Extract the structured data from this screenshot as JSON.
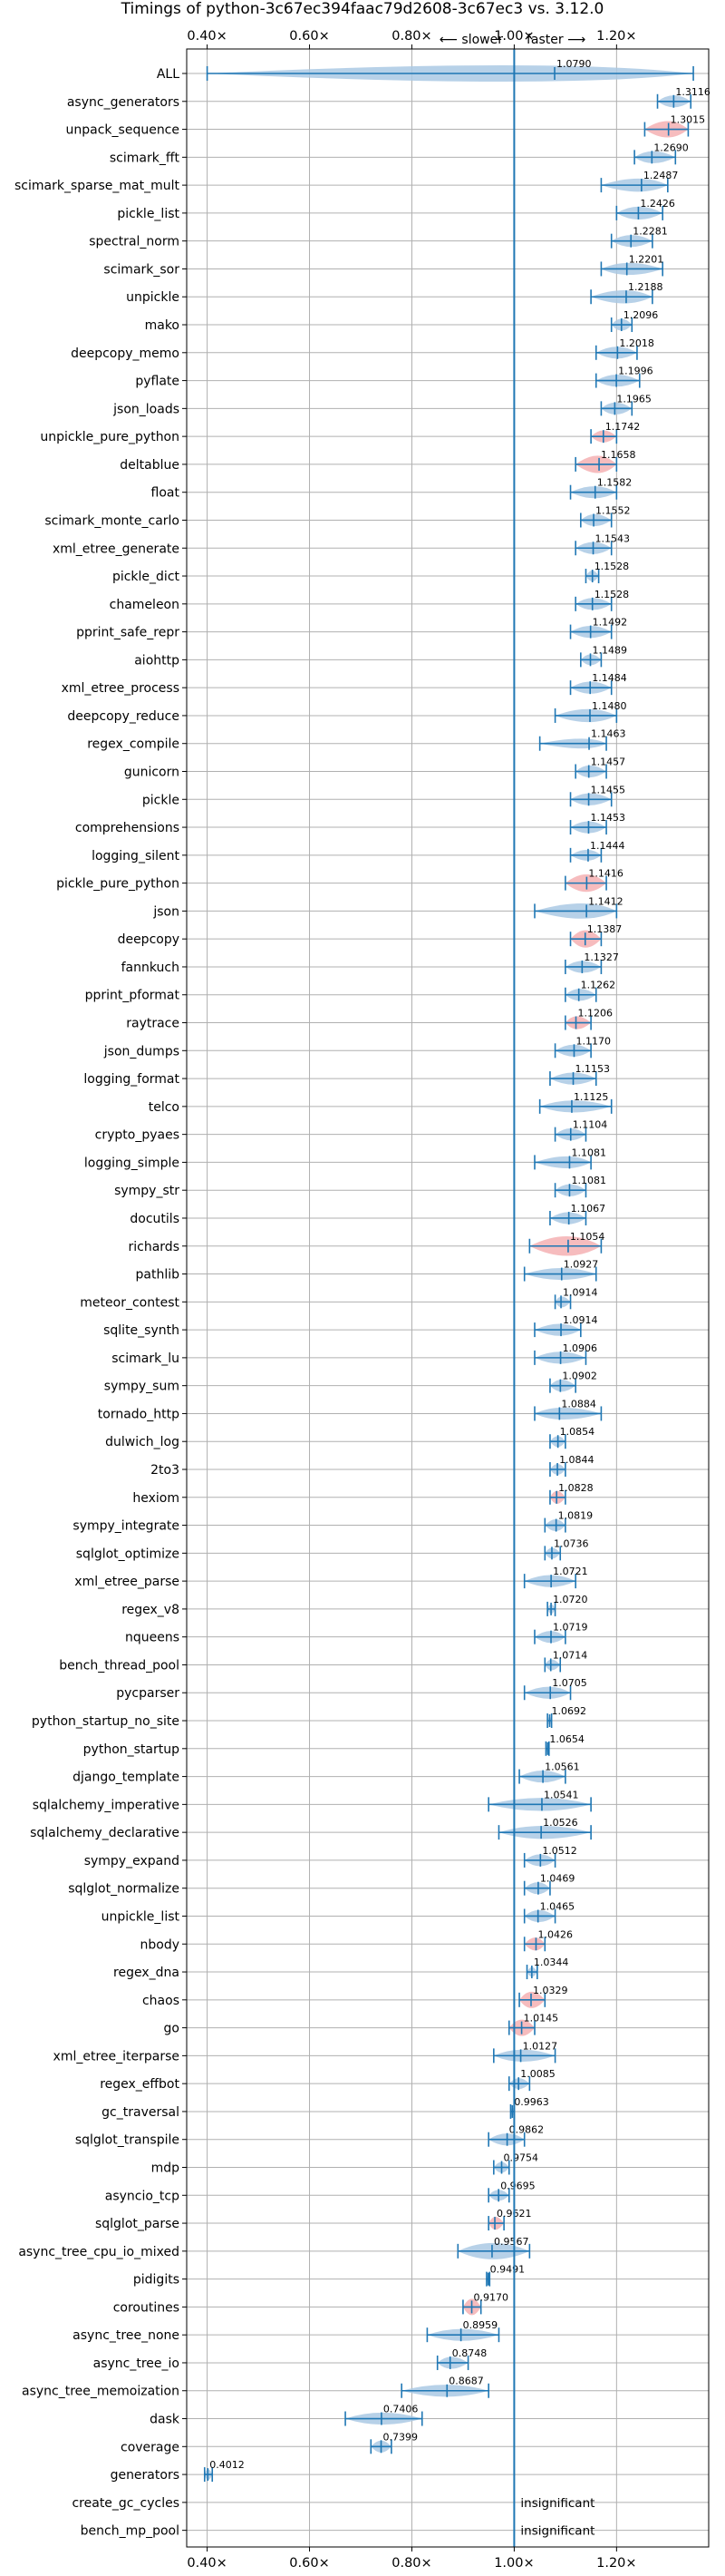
{
  "chart_data": {
    "type": "violin",
    "title": "Timings of python-3c67ec394faac79d2608-3c67ec3 vs. 3.12.0",
    "direction_left": "⟵ slower",
    "direction_right": "faster ⟶",
    "x_ticks": [
      0.4,
      0.6,
      0.8,
      1.0,
      1.2
    ],
    "x_tick_labels": [
      "0.40×",
      "0.60×",
      "0.80×",
      "1.00×",
      "1.20×"
    ],
    "xlim": [
      0.36,
      1.38
    ],
    "grid": true,
    "reference_line": 1.0,
    "colors": {
      "faster": "#aac9e4",
      "slower": "#f5b0b3",
      "accent": "#1f77b4",
      "grid": "#b0b0b0"
    },
    "insignificant_label": "insignificant",
    "benchmarks": [
      {
        "name": "ALL",
        "value": 1.079,
        "label": "1.0790",
        "lo": 0.4,
        "hi": 1.35,
        "wid": 0.75
      },
      {
        "name": "async_generators",
        "value": 1.3116,
        "label": "1.3116",
        "lo": 1.28,
        "hi": 1.345,
        "wid": 0.55
      },
      {
        "name": "unpack_sequence",
        "value": 1.3015,
        "label": "1.3015",
        "lo": 1.255,
        "hi": 1.34,
        "wid": 0.75,
        "slower": true
      },
      {
        "name": "scimark_fft",
        "value": 1.269,
        "label": "1.2690",
        "lo": 1.235,
        "hi": 1.315,
        "wid": 0.55
      },
      {
        "name": "scimark_sparse_mat_mult",
        "value": 1.2487,
        "label": "1.2487",
        "lo": 1.17,
        "hi": 1.3,
        "wid": 0.6
      },
      {
        "name": "pickle_list",
        "value": 1.2426,
        "label": "1.2426",
        "lo": 1.2,
        "hi": 1.29,
        "wid": 0.6
      },
      {
        "name": "spectral_norm",
        "value": 1.2281,
        "label": "1.2281",
        "lo": 1.19,
        "hi": 1.27,
        "wid": 0.55
      },
      {
        "name": "scimark_sor",
        "value": 1.2201,
        "label": "1.2201",
        "lo": 1.17,
        "hi": 1.29,
        "wid": 0.55
      },
      {
        "name": "unpickle",
        "value": 1.2188,
        "label": "1.2188",
        "lo": 1.15,
        "hi": 1.27,
        "wid": 0.6
      },
      {
        "name": "mako",
        "value": 1.2096,
        "label": "1.2096",
        "lo": 1.19,
        "hi": 1.23,
        "wid": 0.55
      },
      {
        "name": "deepcopy_memo",
        "value": 1.2018,
        "label": "1.2018",
        "lo": 1.16,
        "hi": 1.24,
        "wid": 0.55
      },
      {
        "name": "pyflate",
        "value": 1.1996,
        "label": "1.1996",
        "lo": 1.16,
        "hi": 1.245,
        "wid": 0.55
      },
      {
        "name": "json_loads",
        "value": 1.1965,
        "label": "1.1965",
        "lo": 1.17,
        "hi": 1.23,
        "wid": 0.55
      },
      {
        "name": "unpickle_pure_python",
        "value": 1.1742,
        "label": "1.1742",
        "lo": 1.15,
        "hi": 1.2,
        "wid": 0.55,
        "slower": true
      },
      {
        "name": "deltablue",
        "value": 1.1658,
        "label": "1.1658",
        "lo": 1.12,
        "hi": 1.2,
        "wid": 0.8,
        "slower": true
      },
      {
        "name": "float",
        "value": 1.1582,
        "label": "1.1582",
        "lo": 1.11,
        "hi": 1.2,
        "wid": 0.55
      },
      {
        "name": "scimark_monte_carlo",
        "value": 1.1552,
        "label": "1.1552",
        "lo": 1.13,
        "hi": 1.19,
        "wid": 0.55
      },
      {
        "name": "xml_etree_generate",
        "value": 1.1543,
        "label": "1.1543",
        "lo": 1.12,
        "hi": 1.19,
        "wid": 0.55
      },
      {
        "name": "pickle_dict",
        "value": 1.1528,
        "label": "1.1528",
        "lo": 1.14,
        "hi": 1.165,
        "wid": 0.5
      },
      {
        "name": "chameleon",
        "value": 1.1528,
        "label": "1.1528",
        "lo": 1.12,
        "hi": 1.19,
        "wid": 0.55
      },
      {
        "name": "pprint_safe_repr",
        "value": 1.1492,
        "label": "1.1492",
        "lo": 1.11,
        "hi": 1.19,
        "wid": 0.55
      },
      {
        "name": "aiohttp",
        "value": 1.1489,
        "label": "1.1489",
        "lo": 1.13,
        "hi": 1.17,
        "wid": 0.5
      },
      {
        "name": "xml_etree_process",
        "value": 1.1484,
        "label": "1.1484",
        "lo": 1.11,
        "hi": 1.19,
        "wid": 0.55
      },
      {
        "name": "deepcopy_reduce",
        "value": 1.148,
        "label": "1.1480",
        "lo": 1.08,
        "hi": 1.2,
        "wid": 0.6
      },
      {
        "name": "regex_compile",
        "value": 1.1463,
        "label": "1.1463",
        "lo": 1.05,
        "hi": 1.18,
        "wid": 0.45
      },
      {
        "name": "gunicorn",
        "value": 1.1457,
        "label": "1.1457",
        "lo": 1.12,
        "hi": 1.18,
        "wid": 0.55
      },
      {
        "name": "pickle",
        "value": 1.1455,
        "label": "1.1455",
        "lo": 1.11,
        "hi": 1.19,
        "wid": 0.55
      },
      {
        "name": "comprehensions",
        "value": 1.1453,
        "label": "1.1453",
        "lo": 1.11,
        "hi": 1.18,
        "wid": 0.55
      },
      {
        "name": "logging_silent",
        "value": 1.1444,
        "label": "1.1444",
        "lo": 1.11,
        "hi": 1.17,
        "wid": 0.5
      },
      {
        "name": "pickle_pure_python",
        "value": 1.1416,
        "label": "1.1416",
        "lo": 1.1,
        "hi": 1.18,
        "wid": 0.8,
        "slower": true
      },
      {
        "name": "json",
        "value": 1.1412,
        "label": "1.1412",
        "lo": 1.04,
        "hi": 1.2,
        "wid": 0.7
      },
      {
        "name": "deepcopy",
        "value": 1.1387,
        "label": "1.1387",
        "lo": 1.11,
        "hi": 1.17,
        "wid": 0.8,
        "slower": true
      },
      {
        "name": "fannkuch",
        "value": 1.1327,
        "label": "1.1327",
        "lo": 1.1,
        "hi": 1.17,
        "wid": 0.55
      },
      {
        "name": "pprint_pformat",
        "value": 1.1262,
        "label": "1.1262",
        "lo": 1.1,
        "hi": 1.16,
        "wid": 0.55
      },
      {
        "name": "raytrace",
        "value": 1.1206,
        "label": "1.1206",
        "lo": 1.1,
        "hi": 1.15,
        "wid": 0.6,
        "slower": true
      },
      {
        "name": "json_dumps",
        "value": 1.117,
        "label": "1.1170",
        "lo": 1.08,
        "hi": 1.15,
        "wid": 0.55
      },
      {
        "name": "logging_format",
        "value": 1.1153,
        "label": "1.1153",
        "lo": 1.07,
        "hi": 1.16,
        "wid": 0.55
      },
      {
        "name": "telco",
        "value": 1.1125,
        "label": "1.1125",
        "lo": 1.05,
        "hi": 1.19,
        "wid": 0.55
      },
      {
        "name": "crypto_pyaes",
        "value": 1.1104,
        "label": "1.1104",
        "lo": 1.08,
        "hi": 1.14,
        "wid": 0.55
      },
      {
        "name": "logging_simple",
        "value": 1.1081,
        "label": "1.1081",
        "lo": 1.04,
        "hi": 1.15,
        "wid": 0.55
      },
      {
        "name": "sympy_str",
        "value": 1.1081,
        "label": "1.1081",
        "lo": 1.08,
        "hi": 1.14,
        "wid": 0.55
      },
      {
        "name": "docutils",
        "value": 1.1067,
        "label": "1.1067",
        "lo": 1.07,
        "hi": 1.14,
        "wid": 0.55
      },
      {
        "name": "richards",
        "value": 1.1054,
        "label": "1.1054",
        "lo": 1.03,
        "hi": 1.17,
        "wid": 0.9,
        "slower": true
      },
      {
        "name": "pathlib",
        "value": 1.0927,
        "label": "1.0927",
        "lo": 1.02,
        "hi": 1.16,
        "wid": 0.55
      },
      {
        "name": "meteor_contest",
        "value": 1.0914,
        "label": "1.0914",
        "lo": 1.08,
        "hi": 1.11,
        "wid": 0.5
      },
      {
        "name": "sqlite_synth",
        "value": 1.0914,
        "label": "1.0914",
        "lo": 1.04,
        "hi": 1.13,
        "wid": 0.55
      },
      {
        "name": "scimark_lu",
        "value": 1.0906,
        "label": "1.0906",
        "lo": 1.04,
        "hi": 1.14,
        "wid": 0.55
      },
      {
        "name": "sympy_sum",
        "value": 1.0902,
        "label": "1.0902",
        "lo": 1.07,
        "hi": 1.12,
        "wid": 0.55
      },
      {
        "name": "tornado_http",
        "value": 1.0884,
        "label": "1.0884",
        "lo": 1.04,
        "hi": 1.17,
        "wid": 0.55
      },
      {
        "name": "dulwich_log",
        "value": 1.0854,
        "label": "1.0854",
        "lo": 1.07,
        "hi": 1.1,
        "wid": 0.5
      },
      {
        "name": "2to3",
        "value": 1.0844,
        "label": "1.0844",
        "lo": 1.07,
        "hi": 1.1,
        "wid": 0.5
      },
      {
        "name": "hexiom",
        "value": 1.0828,
        "label": "1.0828",
        "lo": 1.07,
        "hi": 1.1,
        "wid": 0.6,
        "slower": true
      },
      {
        "name": "sympy_integrate",
        "value": 1.0819,
        "label": "1.0819",
        "lo": 1.06,
        "hi": 1.1,
        "wid": 0.55
      },
      {
        "name": "sqlglot_optimize",
        "value": 1.0736,
        "label": "1.0736",
        "lo": 1.06,
        "hi": 1.09,
        "wid": 0.5
      },
      {
        "name": "xml_etree_parse",
        "value": 1.0721,
        "label": "1.0721",
        "lo": 1.02,
        "hi": 1.12,
        "wid": 0.55
      },
      {
        "name": "regex_v8",
        "value": 1.072,
        "label": "1.0720",
        "lo": 1.065,
        "hi": 1.08,
        "wid": 0.45
      },
      {
        "name": "nqueens",
        "value": 1.0719,
        "label": "1.0719",
        "lo": 1.04,
        "hi": 1.1,
        "wid": 0.55
      },
      {
        "name": "bench_thread_pool",
        "value": 1.0714,
        "label": "1.0714",
        "lo": 1.06,
        "hi": 1.09,
        "wid": 0.5
      },
      {
        "name": "pycparser",
        "value": 1.0705,
        "label": "1.0705",
        "lo": 1.02,
        "hi": 1.11,
        "wid": 0.55
      },
      {
        "name": "python_startup_no_site",
        "value": 1.0692,
        "label": "1.0692",
        "lo": 1.065,
        "hi": 1.073,
        "wid": 0.4
      },
      {
        "name": "python_startup",
        "value": 1.0654,
        "label": "1.0654",
        "lo": 1.062,
        "hi": 1.068,
        "wid": 0.4
      },
      {
        "name": "django_template",
        "value": 1.0561,
        "label": "1.0561",
        "lo": 1.01,
        "hi": 1.1,
        "wid": 0.55
      },
      {
        "name": "sqlalchemy_imperative",
        "value": 1.0541,
        "label": "1.0541",
        "lo": 0.95,
        "hi": 1.15,
        "wid": 0.6
      },
      {
        "name": "sqlalchemy_declarative",
        "value": 1.0526,
        "label": "1.0526",
        "lo": 0.97,
        "hi": 1.15,
        "wid": 0.6
      },
      {
        "name": "sympy_expand",
        "value": 1.0512,
        "label": "1.0512",
        "lo": 1.02,
        "hi": 1.08,
        "wid": 0.55
      },
      {
        "name": "sqlglot_normalize",
        "value": 1.0469,
        "label": "1.0469",
        "lo": 1.02,
        "hi": 1.07,
        "wid": 0.55
      },
      {
        "name": "unpickle_list",
        "value": 1.0465,
        "label": "1.0465",
        "lo": 1.02,
        "hi": 1.08,
        "wid": 0.55
      },
      {
        "name": "nbody",
        "value": 1.0426,
        "label": "1.0426",
        "lo": 1.02,
        "hi": 1.06,
        "wid": 0.6,
        "slower": true
      },
      {
        "name": "regex_dna",
        "value": 1.0344,
        "label": "1.0344",
        "lo": 1.025,
        "hi": 1.045,
        "wid": 0.45
      },
      {
        "name": "chaos",
        "value": 1.0329,
        "label": "1.0329",
        "lo": 1.01,
        "hi": 1.06,
        "wid": 0.75,
        "slower": true
      },
      {
        "name": "go",
        "value": 1.0145,
        "label": "1.0145",
        "lo": 0.99,
        "hi": 1.04,
        "wid": 0.75,
        "slower": true
      },
      {
        "name": "xml_etree_iterparse",
        "value": 1.0127,
        "label": "1.0127",
        "lo": 0.96,
        "hi": 1.08,
        "wid": 0.55
      },
      {
        "name": "regex_effbot",
        "value": 1.0085,
        "label": "1.0085",
        "lo": 0.99,
        "hi": 1.03,
        "wid": 0.5
      },
      {
        "name": "gc_traversal",
        "value": 0.9963,
        "label": "0.9963",
        "lo": 0.993,
        "hi": 1.0,
        "wid": 0.4
      },
      {
        "name": "sqlglot_transpile",
        "value": 0.9862,
        "label": "0.9862",
        "lo": 0.95,
        "hi": 1.02,
        "wid": 0.55
      },
      {
        "name": "mdp",
        "value": 0.9754,
        "label": "0.9754",
        "lo": 0.96,
        "hi": 0.99,
        "wid": 0.5
      },
      {
        "name": "asyncio_tcp",
        "value": 0.9695,
        "label": "0.9695",
        "lo": 0.95,
        "hi": 0.99,
        "wid": 0.5
      },
      {
        "name": "sqlglot_parse",
        "value": 0.9621,
        "label": "0.9621",
        "lo": 0.95,
        "hi": 0.98,
        "wid": 0.6,
        "slower": true
      },
      {
        "name": "async_tree_cpu_io_mixed",
        "value": 0.9567,
        "label": "0.9567",
        "lo": 0.89,
        "hi": 1.03,
        "wid": 0.75
      },
      {
        "name": "pidigits",
        "value": 0.9491,
        "label": "0.9491",
        "lo": 0.946,
        "hi": 0.952,
        "wid": 0.4
      },
      {
        "name": "coroutines",
        "value": 0.917,
        "label": "0.9170",
        "lo": 0.9,
        "hi": 0.935,
        "wid": 0.75,
        "slower": true
      },
      {
        "name": "async_tree_none",
        "value": 0.8959,
        "label": "0.8959",
        "lo": 0.83,
        "hi": 0.97,
        "wid": 0.55
      },
      {
        "name": "async_tree_io",
        "value": 0.8748,
        "label": "0.8748",
        "lo": 0.85,
        "hi": 0.91,
        "wid": 0.55
      },
      {
        "name": "async_tree_memoization",
        "value": 0.8687,
        "label": "0.8687",
        "lo": 0.78,
        "hi": 0.95,
        "wid": 0.55
      },
      {
        "name": "dask",
        "value": 0.7406,
        "label": "0.7406",
        "lo": 0.67,
        "hi": 0.82,
        "wid": 0.55
      },
      {
        "name": "coverage",
        "value": 0.7399,
        "label": "0.7399",
        "lo": 0.72,
        "hi": 0.76,
        "wid": 0.55
      },
      {
        "name": "generators",
        "value": 0.4012,
        "label": "0.4012",
        "lo": 0.395,
        "hi": 0.41,
        "wid": 0.5
      },
      {
        "name": "create_gc_cycles",
        "value": null,
        "insignificant": true
      },
      {
        "name": "bench_mp_pool",
        "value": null,
        "insignificant": true
      }
    ]
  }
}
